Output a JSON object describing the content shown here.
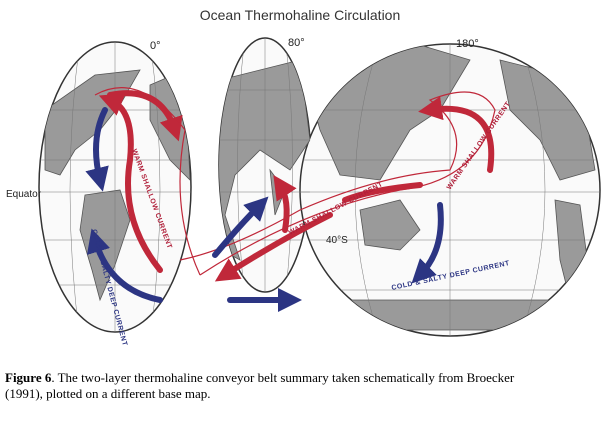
{
  "title": "Ocean Thermohaline Circulation",
  "map": {
    "meridian_labels": [
      "0°",
      "80°",
      "180°"
    ],
    "equator_label": "Equator",
    "latitude_label": "40°S",
    "current_labels": [
      "WARM SHALLOW CURRENT",
      "WARM SHALLOW CURRENT",
      "WARM SHALLOW CURRENT",
      "COLD & SALTY DEEP CURRENT",
      "COLD & SALTY DEEP CURRENT"
    ]
  },
  "caption": {
    "figure_label": "Figure 6",
    "text": ".   The two-layer thermohaline conveyor belt summary taken schematically from Broecker (1991), plotted on a different base map."
  }
}
